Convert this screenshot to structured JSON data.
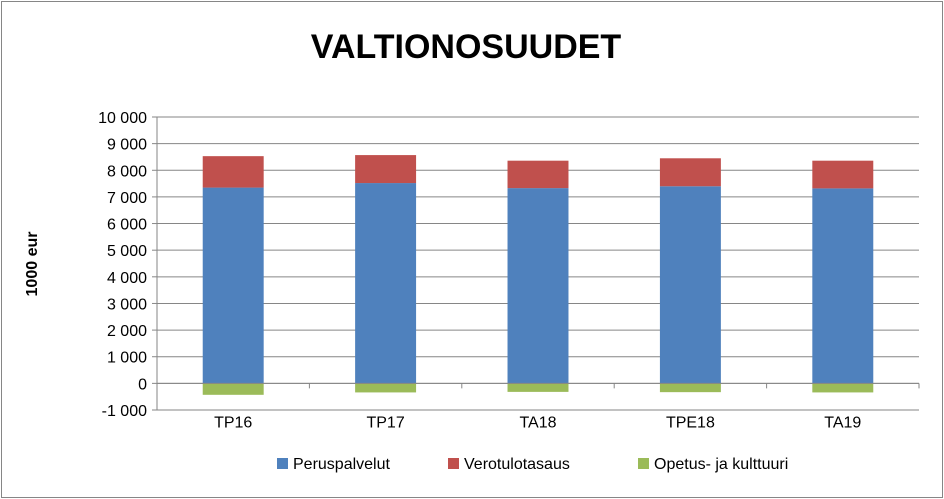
{
  "chart_data": {
    "type": "bar",
    "stacked": true,
    "title": "VALTIONOSUUDET",
    "xlabel": "",
    "ylabel": "1000 eur",
    "ylim": [
      -1000,
      10000
    ],
    "ytick_values": [
      -1000,
      0,
      1000,
      2000,
      3000,
      4000,
      5000,
      6000,
      7000,
      8000,
      9000,
      10000
    ],
    "ytick_labels": [
      "-1 000",
      "0",
      "1 000",
      "2 000",
      "3 000",
      "4 000",
      "5 000",
      "6 000",
      "7 000",
      "8 000",
      "9 000",
      "10 000"
    ],
    "grid": true,
    "legend_position": "bottom",
    "categories": [
      "TP16",
      "TP17",
      "TA18",
      "TPE18",
      "TA19"
    ],
    "series": [
      {
        "name": "Peruspalvelut",
        "color": "#4f81bd",
        "values": [
          7350,
          7520,
          7330,
          7400,
          7320
        ]
      },
      {
        "name": "Verotulotasaus",
        "color": "#c0504d",
        "values": [
          1180,
          1050,
          1030,
          1050,
          1040
        ]
      },
      {
        "name": "Opetus- ja kulttuuri",
        "color": "#9bbb59",
        "values": [
          -430,
          -340,
          -320,
          -330,
          -340
        ]
      }
    ]
  }
}
